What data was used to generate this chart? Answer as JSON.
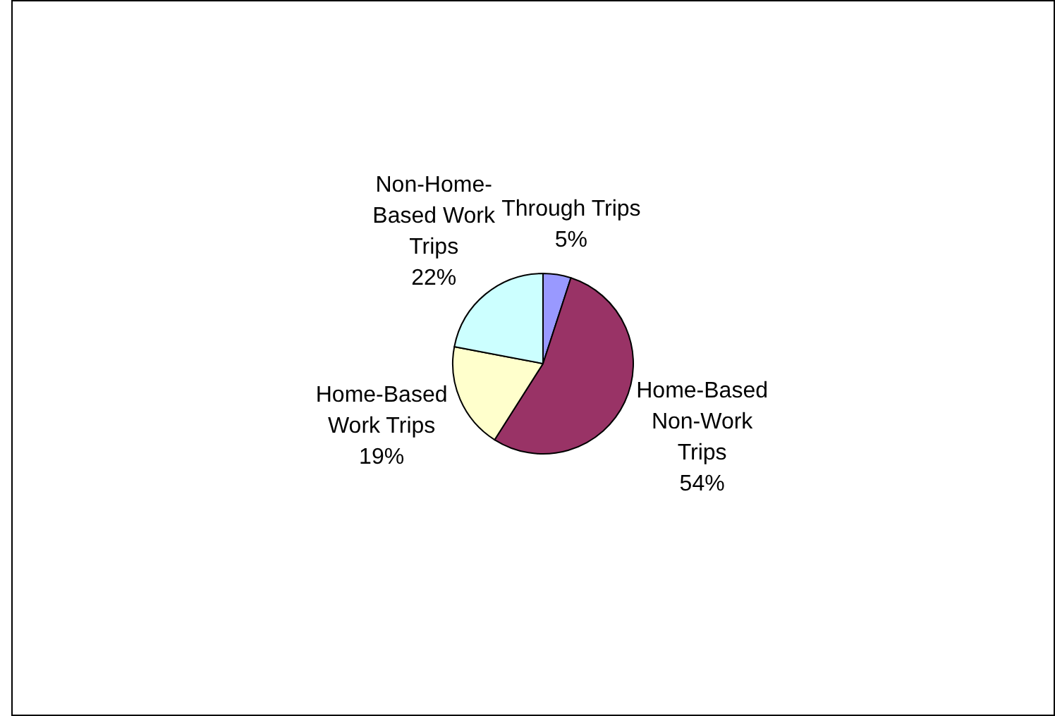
{
  "chart_data": {
    "type": "pie",
    "categories": [
      "Through Trips",
      "Home-Based Non-Work Trips",
      "Home-Based Work Trips",
      "Non-Home-Based Work Trips"
    ],
    "values": [
      5,
      54,
      19,
      22
    ],
    "colors": [
      "#9999ff",
      "#993366",
      "#ffffcc",
      "#ccffff"
    ],
    "value_labels": [
      "5%",
      "54%",
      "19%",
      "22%"
    ]
  }
}
